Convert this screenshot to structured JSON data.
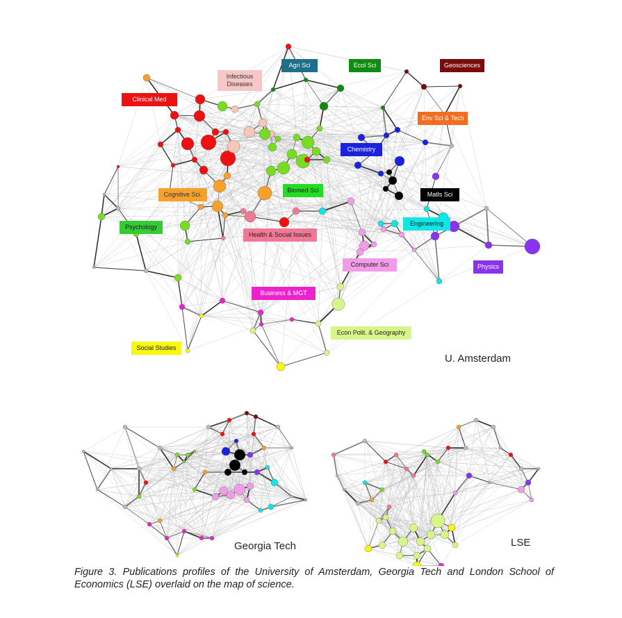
{
  "maps": {
    "amsterdam": {
      "title": "U. Amsterdam"
    },
    "georgia_tech": {
      "title": "Georgia Tech"
    },
    "lse": {
      "title": "LSE"
    }
  },
  "category_labels": [
    {
      "id": "clinical-med",
      "text": "Clinical Med",
      "bg": "#ee1111",
      "fg": "#ffffff"
    },
    {
      "id": "infectious-diseases",
      "text": "Infectious\nDiseases",
      "bg": "#f7c6c6",
      "fg": "#333333"
    },
    {
      "id": "agri-sci",
      "text": "Agri Sci",
      "bg": "#1f6f8b",
      "fg": "#ffffff"
    },
    {
      "id": "ecol-sci",
      "text": "Ecol Sci",
      "bg": "#118a11",
      "fg": "#ffffff"
    },
    {
      "id": "geosciences",
      "text": "Geosciences",
      "bg": "#7a0b0b",
      "fg": "#ffffff"
    },
    {
      "id": "env-sci-tech",
      "text": "Env Sci & Tech",
      "bg": "#f26d1f",
      "fg": "#ffffff"
    },
    {
      "id": "chemistry",
      "text": "Chemistry",
      "bg": "#1a22dd",
      "fg": "#ffffff"
    },
    {
      "id": "cognitive-sci",
      "text": "Cognitive Sci.",
      "bg": "#f7a12b",
      "fg": "#333333"
    },
    {
      "id": "biomed-sci",
      "text": "Biomed Sci",
      "bg": "#22dd22",
      "fg": "#1a1a1a"
    },
    {
      "id": "matls-sci",
      "text": "Matls Sci",
      "bg": "#000000",
      "fg": "#ffffff"
    },
    {
      "id": "psychology",
      "text": "Psychology",
      "bg": "#33cc33",
      "fg": "#1a1a1a"
    },
    {
      "id": "health-social",
      "text": "Health & Social Issues",
      "bg": "#f07a96",
      "fg": "#222222"
    },
    {
      "id": "engineering",
      "text": "Engineering",
      "bg": "#11e6e6",
      "fg": "#1a1a1a"
    },
    {
      "id": "computer-sci",
      "text": "Computer Sci",
      "bg": "#f29be8",
      "fg": "#222222"
    },
    {
      "id": "physics",
      "text": "Physics",
      "bg": "#8833ee",
      "fg": "#ffffff"
    },
    {
      "id": "business-mgt",
      "text": "Business & MGT",
      "bg": "#ee22cc",
      "fg": "#ffffff"
    },
    {
      "id": "econ-polit-geo",
      "text": "Econ Polit. & Geography",
      "bg": "#d8f58a",
      "fg": "#222222"
    },
    {
      "id": "social-studies",
      "text": "Social Studies",
      "bg": "#f7f711",
      "fg": "#222222"
    }
  ],
  "caption": "Figure 3. Publications profiles of the University of Amsterdam, Georgia Tech and London School of Economics (LSE) overlaid on the map of science."
}
